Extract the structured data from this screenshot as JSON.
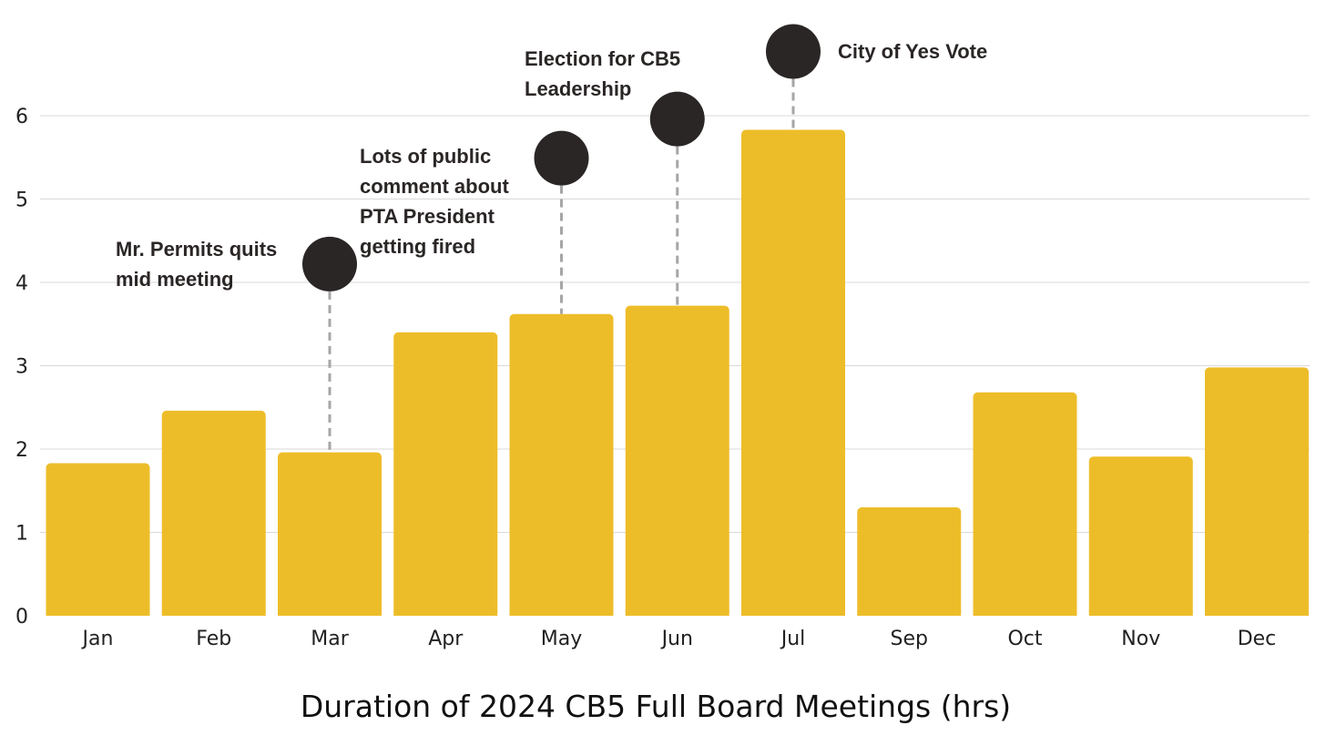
{
  "chart_data": {
    "type": "bar",
    "title": "Duration of 2024 CB5 Full Board Meetings (hrs)",
    "xlabel": "",
    "ylabel": "",
    "categories": [
      "Jan",
      "Feb",
      "Mar",
      "Apr",
      "May",
      "Jun",
      "Jul",
      "Sep",
      "Oct",
      "Nov",
      "Dec"
    ],
    "values": [
      1.83,
      2.46,
      1.96,
      3.4,
      3.62,
      3.72,
      5.83,
      1.3,
      2.68,
      1.91,
      2.98
    ],
    "ylim": [
      0,
      6
    ],
    "yticks": [
      0,
      1,
      2,
      3,
      4,
      5,
      6
    ],
    "grid": true,
    "legend": "none",
    "colors": {
      "bar": "#EDBD29",
      "grid": "#D9D9D9",
      "marker": "#2B2626",
      "leader": "#A6A6A6",
      "text": "#2B2626"
    },
    "annotations": [
      {
        "category": "Mar",
        "marker_value": 4.22,
        "lines": [
          "Mr. Permits quits",
          "mid meeting"
        ]
      },
      {
        "category": "May",
        "marker_value": 5.49,
        "lines": [
          "Lots of public",
          "comment about",
          "PTA President",
          "getting fired"
        ]
      },
      {
        "category": "Jun",
        "marker_value": 5.96,
        "lines": [
          "Election for CB5",
          "Leadership"
        ]
      },
      {
        "category": "Jul",
        "marker_value": 6.77,
        "lines": [
          "City of Yes Vote"
        ]
      }
    ]
  }
}
